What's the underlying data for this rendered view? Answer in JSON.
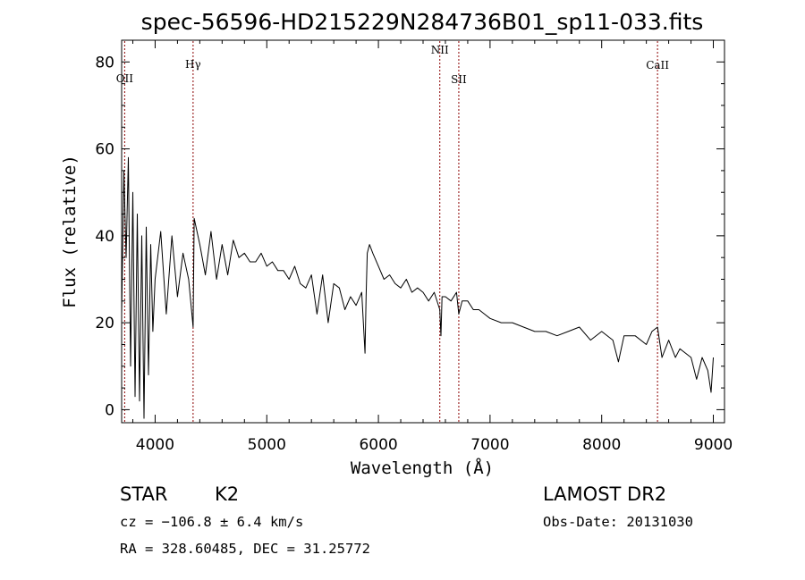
{
  "chart_data": {
    "type": "line",
    "title": "spec-56596-HD215229N284736B01_sp11-033.fits",
    "xlabel": "Wavelength (Å)",
    "ylabel": "Flux (relative)",
    "xlim": [
      3700,
      9100
    ],
    "ylim": [
      -3,
      85
    ],
    "x_ticks": [
      4000,
      5000,
      6000,
      7000,
      8000,
      9000
    ],
    "y_ticks": [
      0,
      20,
      40,
      60,
      80
    ],
    "grid": false,
    "line_color": "#000000",
    "marker_color": "#8b0000",
    "spectral_lines": [
      {
        "label": "OII",
        "x": 3727
      },
      {
        "label": "Hγ",
        "x": 4340
      },
      {
        "label": "NII",
        "x": 6550
      },
      {
        "label": "SII",
        "x": 6720
      },
      {
        "label": "CaII",
        "x": 8500
      }
    ],
    "series": [
      {
        "x": [
          3700,
          3720,
          3740,
          3760,
          3780,
          3800,
          3820,
          3840,
          3860,
          3880,
          3900,
          3920,
          3940,
          3960,
          3980,
          4000,
          4050,
          4100,
          4150,
          4200,
          4250,
          4300,
          4340,
          4350,
          4400,
          4450,
          4500,
          4550,
          4600,
          4650,
          4700,
          4750,
          4800,
          4850,
          4900,
          4950,
          5000,
          5050,
          5100,
          5150,
          5200,
          5250,
          5300,
          5350,
          5400,
          5450,
          5500,
          5550,
          5600,
          5650,
          5700,
          5750,
          5800,
          5850,
          5880,
          5890,
          5900,
          5920,
          5950,
          6000,
          6050,
          6100,
          6150,
          6200,
          6250,
          6300,
          6350,
          6400,
          6450,
          6500,
          6550,
          6560,
          6570,
          6600,
          6650,
          6700,
          6720,
          6750,
          6800,
          6850,
          6900,
          6950,
          7000,
          7100,
          7200,
          7300,
          7400,
          7500,
          7600,
          7700,
          7800,
          7900,
          8000,
          8100,
          8150,
          8200,
          8300,
          8400,
          8450,
          8500,
          8540,
          8600,
          8660,
          8700,
          8800,
          8850,
          8900,
          8950,
          8980,
          9000
        ],
        "values": [
          22,
          55,
          35,
          58,
          10,
          50,
          3,
          45,
          2,
          40,
          -2,
          42,
          8,
          38,
          18,
          30,
          41,
          22,
          40,
          26,
          36,
          30,
          19,
          44,
          38,
          31,
          41,
          30,
          38,
          31,
          39,
          35,
          36,
          34,
          34,
          36,
          33,
          34,
          32,
          32,
          30,
          33,
          29,
          28,
          31,
          22,
          31,
          20,
          29,
          28,
          23,
          26,
          24,
          27,
          13,
          26,
          36,
          38,
          36,
          33,
          30,
          31,
          29,
          28,
          30,
          27,
          28,
          27,
          25,
          27,
          23,
          17,
          26,
          26,
          25,
          27,
          22,
          25,
          25,
          23,
          23,
          22,
          21,
          20,
          20,
          19,
          18,
          18,
          17,
          18,
          19,
          16,
          18,
          16,
          11,
          17,
          17,
          15,
          18,
          19,
          12,
          16,
          12,
          14,
          12,
          7,
          12,
          9,
          4,
          12
        ]
      }
    ]
  },
  "info": {
    "object_class": "STAR",
    "subclass": "K2",
    "survey": "LAMOST DR2",
    "redshift": "cz = −106.8 ± 6.4 km/s",
    "obs_date": "Obs-Date: 20131030",
    "coords": "RA = 328.60485, DEC =  31.25772"
  }
}
